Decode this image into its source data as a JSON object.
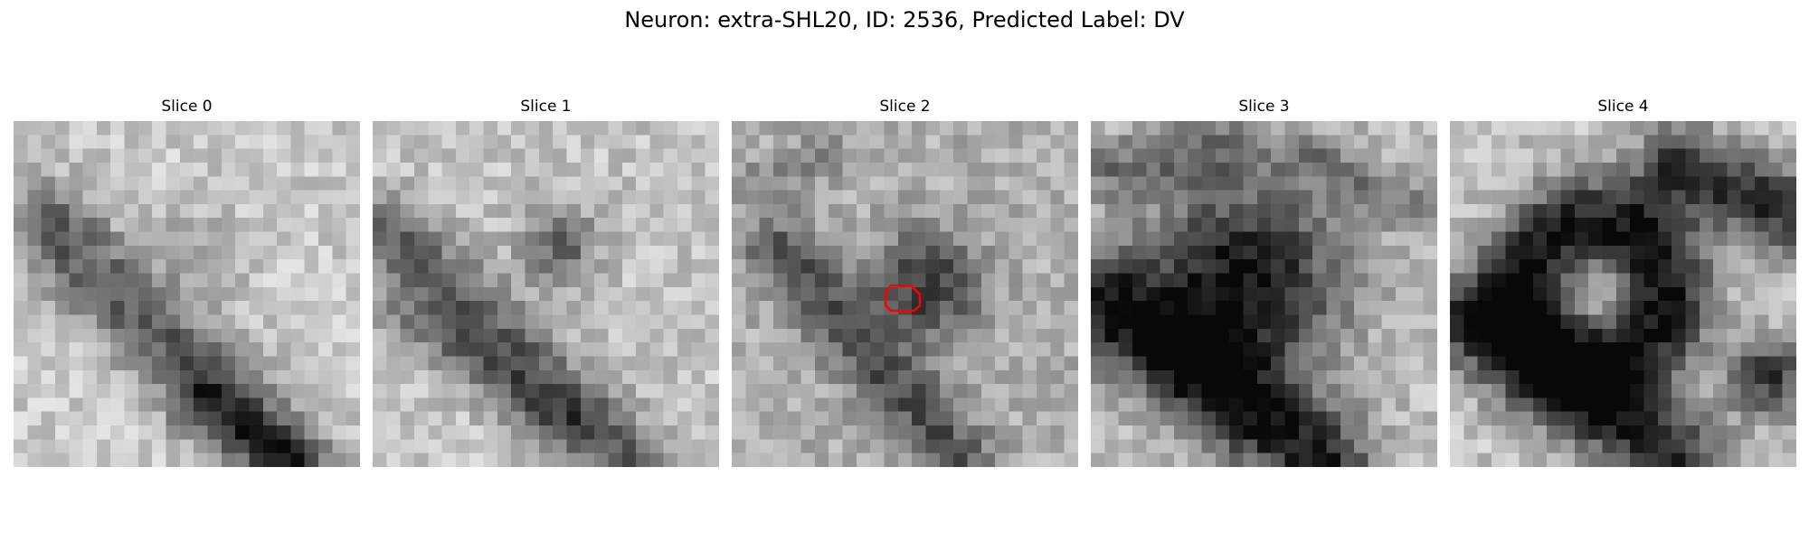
{
  "figure": {
    "title": "Neuron: extra-SHL20, ID: 2536, Predicted Label: DV",
    "marker_color": "#ff0000",
    "colormap": "gray",
    "grid_size": 25,
    "marked_slice_index": 2,
    "slices": [
      {
        "title": "Slice 0",
        "seed": 11
      },
      {
        "title": "Slice 1",
        "seed": 23
      },
      {
        "title": "Slice 2",
        "seed": 37
      },
      {
        "title": "Slice 3",
        "seed": 41
      },
      {
        "title": "Slice 4",
        "seed": 59
      }
    ]
  }
}
